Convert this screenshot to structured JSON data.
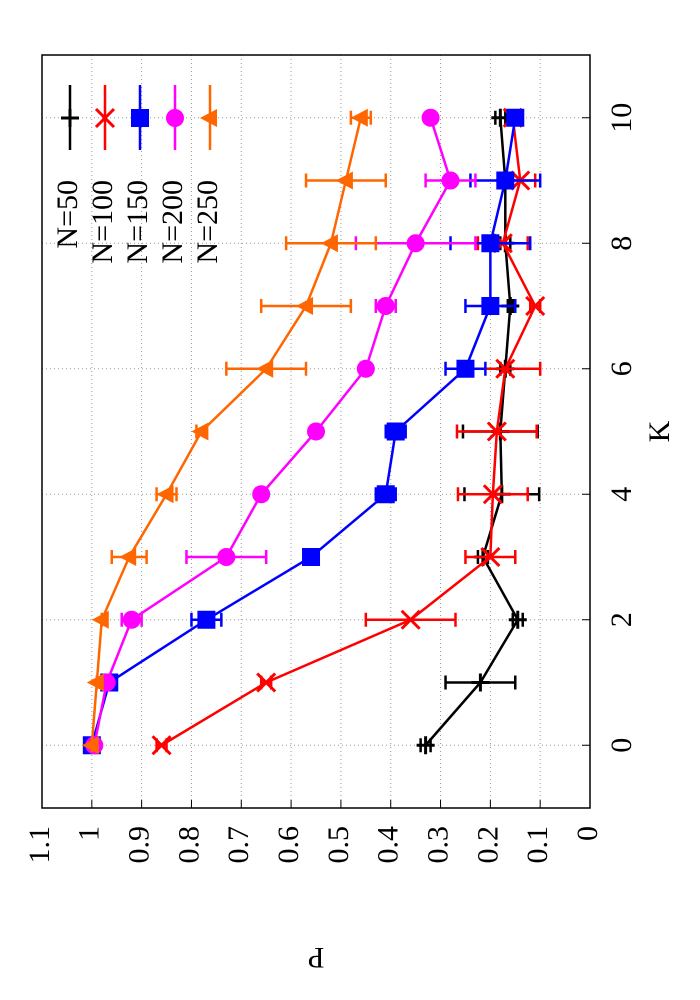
{
  "chart_data": {
    "type": "line",
    "xlabel": "K",
    "ylabel": "P",
    "x": [
      0,
      1,
      2,
      3,
      4,
      5,
      6,
      7,
      8,
      9,
      10
    ],
    "xlim": [
      -1,
      11
    ],
    "xticks": [
      0,
      2,
      4,
      6,
      8,
      10
    ],
    "ylim": [
      0,
      1.1
    ],
    "yticks": [
      0,
      0.1,
      0.2,
      0.3,
      0.4,
      0.5,
      0.6,
      0.7,
      0.8,
      0.9,
      1,
      1.1
    ],
    "grid": true,
    "legend": "top right",
    "rotation": -90,
    "series": [
      {
        "name": "N=50",
        "color": "#000000",
        "marker": "plus",
        "values": [
          0.33,
          0.22,
          0.145,
          0.215,
          0.177,
          0.18,
          0.17,
          0.16,
          0.17,
          0.17,
          0.18
        ],
        "errors": [
          0.01,
          0.07,
          0.01,
          0.01,
          0.075,
          0.075,
          0.01,
          0.005,
          0.01,
          0.01,
          0.01
        ]
      },
      {
        "name": "N=100",
        "color": "#ff0000",
        "marker": "cross",
        "values": [
          0.86,
          0.65,
          0.36,
          0.2,
          0.195,
          0.187,
          0.17,
          0.11,
          0.175,
          0.14,
          0.155
        ],
        "errors": [
          0.01,
          0.01,
          0.09,
          0.05,
          0.07,
          0.08,
          0.07,
          0.01,
          0.05,
          0.03,
          0.01
        ]
      },
      {
        "name": "N=150",
        "color": "#0000ff",
        "marker": "square",
        "values": [
          1.0,
          0.965,
          0.77,
          0.56,
          0.41,
          0.39,
          0.25,
          0.2,
          0.2,
          0.17,
          0.15
        ],
        "errors": [
          0.005,
          0.005,
          0.03,
          0.005,
          0.02,
          0.02,
          0.04,
          0.05,
          0.08,
          0.07,
          0.01
        ]
      },
      {
        "name": "N=200",
        "color": "#ff00ff",
        "marker": "circle",
        "values": [
          0.995,
          0.97,
          0.92,
          0.73,
          0.66,
          0.55,
          0.45,
          0.41,
          0.35,
          0.28,
          0.32
        ],
        "errors": [
          0.005,
          0.005,
          0.02,
          0.08,
          0.01,
          0.01,
          0.01,
          0.02,
          0.12,
          0.05,
          0
        ]
      },
      {
        "name": "N=250",
        "color": "#ff6600",
        "marker": "triangle",
        "values": [
          1.0,
          0.99,
          0.98,
          0.925,
          0.85,
          0.78,
          0.65,
          0.57,
          0.52,
          0.49,
          0.46
        ],
        "errors": [
          0,
          0,
          0,
          0.035,
          0.02,
          0.01,
          0.08,
          0.09,
          0.09,
          0.08,
          0.02
        ]
      }
    ]
  }
}
